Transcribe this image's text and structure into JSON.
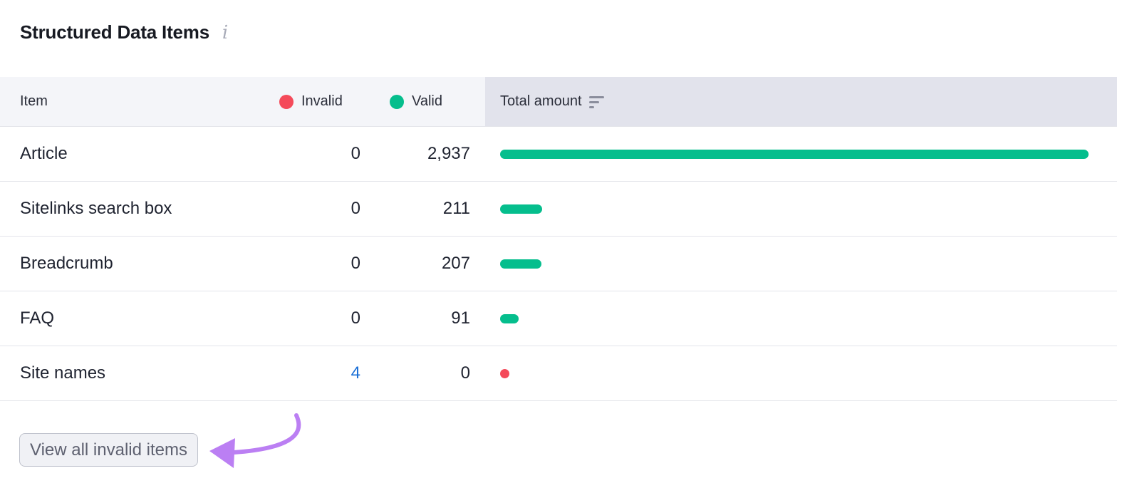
{
  "header": {
    "title": "Structured Data Items",
    "info_icon": "info-icon"
  },
  "columns": {
    "item": "Item",
    "invalid": "Invalid",
    "valid": "Valid",
    "total": "Total amount"
  },
  "colors": {
    "invalid": "#f44a5a",
    "valid": "#05be8d",
    "link": "#1a6fd6",
    "annotation_arrow": "#bb7ff3"
  },
  "rows": [
    {
      "name": "Article",
      "invalid": "0",
      "valid": "2,937",
      "invalid_n": 0,
      "valid_n": 2937
    },
    {
      "name": "Sitelinks search box",
      "invalid": "0",
      "valid": "211",
      "invalid_n": 0,
      "valid_n": 211
    },
    {
      "name": "Breadcrumb",
      "invalid": "0",
      "valid": "207",
      "invalid_n": 0,
      "valid_n": 207
    },
    {
      "name": "FAQ",
      "invalid": "0",
      "valid": "91",
      "invalid_n": 0,
      "valid_n": 91
    },
    {
      "name": "Site names",
      "invalid": "4",
      "valid": "0",
      "invalid_n": 4,
      "valid_n": 0,
      "invalid_is_link": true
    }
  ],
  "footer": {
    "button_label": "View all invalid items"
  }
}
